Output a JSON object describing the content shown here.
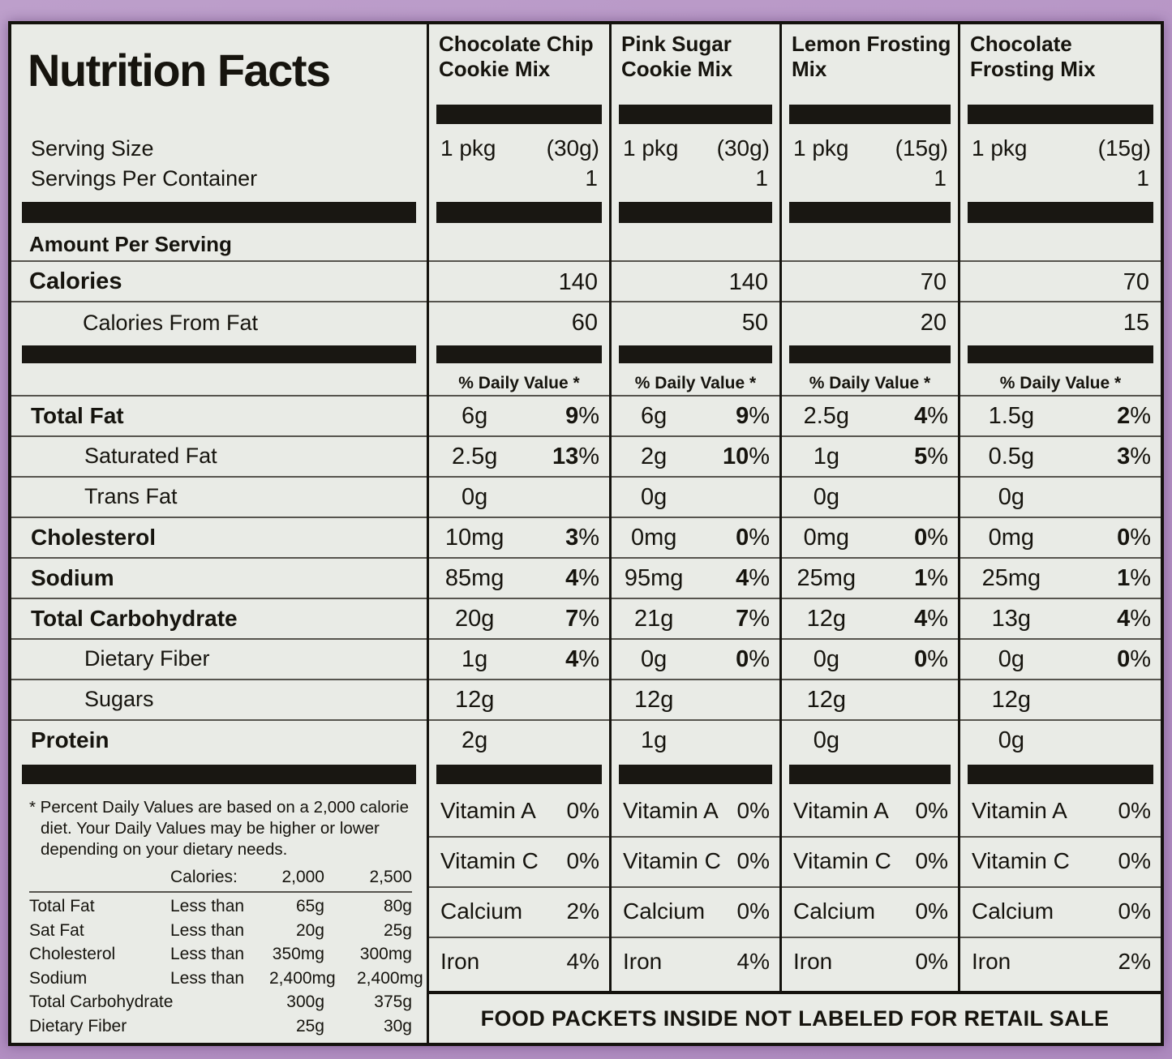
{
  "title": "Nutrition Facts",
  "left": {
    "serving_size_label": "Serving Size",
    "servings_per_container_label": "Servings Per Container",
    "amount_per_serving_label": "Amount Per Serving",
    "calories_label": "Calories",
    "calories_from_fat_label": "Calories From Fat"
  },
  "daily_value_header": "% Daily Value *",
  "nutrient_rows": [
    {
      "label": "Total Fat",
      "style": "bold"
    },
    {
      "label": "Saturated Fat",
      "style": "indent"
    },
    {
      "label": "Trans Fat",
      "style": "indent"
    },
    {
      "label": "Cholesterol",
      "style": "bold"
    },
    {
      "label": "Sodium",
      "style": "bold"
    },
    {
      "label": "Total Carbohydrate",
      "style": "bold"
    },
    {
      "label": "Dietary Fiber",
      "style": "indent"
    },
    {
      "label": "Sugars",
      "style": "indent"
    },
    {
      "label": "Protein",
      "style": "bold"
    }
  ],
  "columns": [
    {
      "name": "Chocolate Chip Cookie Mix",
      "serving_size": "1 pkg",
      "serving_weight": "(30g)",
      "servings_per_container": "1",
      "calories": "140",
      "calories_from_fat": "60",
      "nutrients": [
        {
          "amount": "6g",
          "dv": "9%"
        },
        {
          "amount": "2.5g",
          "dv": "13%"
        },
        {
          "amount": "0g",
          "dv": ""
        },
        {
          "amount": "10mg",
          "dv": "3%"
        },
        {
          "amount": "85mg",
          "dv": "4%"
        },
        {
          "amount": "20g",
          "dv": "7%"
        },
        {
          "amount": "1g",
          "dv": "4%"
        },
        {
          "amount": "12g",
          "dv": ""
        },
        {
          "amount": "2g",
          "dv": ""
        }
      ],
      "vitamins": [
        {
          "label": "Vitamin A",
          "value": "0%"
        },
        {
          "label": "Vitamin C",
          "value": "0%"
        },
        {
          "label": "Calcium",
          "value": "2%"
        },
        {
          "label": "Iron",
          "value": "4%"
        }
      ]
    },
    {
      "name": "Pink Sugar Cookie Mix",
      "serving_size": "1 pkg",
      "serving_weight": "(30g)",
      "servings_per_container": "1",
      "calories": "140",
      "calories_from_fat": "50",
      "nutrients": [
        {
          "amount": "6g",
          "dv": "9%"
        },
        {
          "amount": "2g",
          "dv": "10%"
        },
        {
          "amount": "0g",
          "dv": ""
        },
        {
          "amount": "0mg",
          "dv": "0%"
        },
        {
          "amount": "95mg",
          "dv": "4%"
        },
        {
          "amount": "21g",
          "dv": "7%"
        },
        {
          "amount": "0g",
          "dv": "0%"
        },
        {
          "amount": "12g",
          "dv": ""
        },
        {
          "amount": "1g",
          "dv": ""
        }
      ],
      "vitamins": [
        {
          "label": "Vitamin A",
          "value": "0%"
        },
        {
          "label": "Vitamin C",
          "value": "0%"
        },
        {
          "label": "Calcium",
          "value": "0%"
        },
        {
          "label": "Iron",
          "value": "4%"
        }
      ]
    },
    {
      "name": "Lemon Frosting Mix",
      "serving_size": "1 pkg",
      "serving_weight": "(15g)",
      "servings_per_container": "1",
      "calories": "70",
      "calories_from_fat": "20",
      "nutrients": [
        {
          "amount": "2.5g",
          "dv": "4%"
        },
        {
          "amount": "1g",
          "dv": "5%"
        },
        {
          "amount": "0g",
          "dv": ""
        },
        {
          "amount": "0mg",
          "dv": "0%"
        },
        {
          "amount": "25mg",
          "dv": "1%"
        },
        {
          "amount": "12g",
          "dv": "4%"
        },
        {
          "amount": "0g",
          "dv": "0%"
        },
        {
          "amount": "12g",
          "dv": ""
        },
        {
          "amount": "0g",
          "dv": ""
        }
      ],
      "vitamins": [
        {
          "label": "Vitamin A",
          "value": "0%"
        },
        {
          "label": "Vitamin C",
          "value": "0%"
        },
        {
          "label": "Calcium",
          "value": "0%"
        },
        {
          "label": "Iron",
          "value": "0%"
        }
      ]
    },
    {
      "name": "Chocolate Frosting Mix",
      "serving_size": "1 pkg",
      "serving_weight": "(15g)",
      "servings_per_container": "1",
      "calories": "70",
      "calories_from_fat": "15",
      "nutrients": [
        {
          "amount": "1.5g",
          "dv": "2%"
        },
        {
          "amount": "0.5g",
          "dv": "3%"
        },
        {
          "amount": "0g",
          "dv": ""
        },
        {
          "amount": "0mg",
          "dv": "0%"
        },
        {
          "amount": "25mg",
          "dv": "1%"
        },
        {
          "amount": "13g",
          "dv": "4%"
        },
        {
          "amount": "0g",
          "dv": "0%"
        },
        {
          "amount": "12g",
          "dv": ""
        },
        {
          "amount": "0g",
          "dv": ""
        }
      ],
      "vitamins": [
        {
          "label": "Vitamin A",
          "value": "0%"
        },
        {
          "label": "Vitamin C",
          "value": "0%"
        },
        {
          "label": "Calcium",
          "value": "0%"
        },
        {
          "label": "Iron",
          "value": "2%"
        }
      ]
    }
  ],
  "footnote": {
    "text": "* Percent Daily Values are based on a 2,000 calorie diet. Your Daily Values may be higher or lower depending on your dietary needs.",
    "calories_header": {
      "label": "Calories:",
      "v2000": "2,000",
      "v2500": "2,500"
    },
    "rows": [
      {
        "label": "Total Fat",
        "qualifier": "Less than",
        "v2000": "65g",
        "v2500": "80g"
      },
      {
        "label": "Sat Fat",
        "qualifier": "Less than",
        "v2000": "20g",
        "v2500": "25g"
      },
      {
        "label": "Cholesterol",
        "qualifier": "Less than",
        "v2000": "350mg",
        "v2500": "300mg"
      },
      {
        "label": "Sodium",
        "qualifier": "Less than",
        "v2000": "2,400mg",
        "v2500": "2,400mg"
      },
      {
        "label": "Total Carbohydrate",
        "qualifier": "",
        "v2000": "300g",
        "v2500": "375g"
      },
      {
        "label": "Dietary Fiber",
        "qualifier": "",
        "v2000": "25g",
        "v2500": "30g"
      }
    ]
  },
  "banner": "FOOD PACKETS INSIDE NOT LABELED FOR RETAIL SALE",
  "colors": {
    "background_purple": "#b593c5",
    "label_background": "#e9ebe6",
    "ink": "#16140e"
  }
}
